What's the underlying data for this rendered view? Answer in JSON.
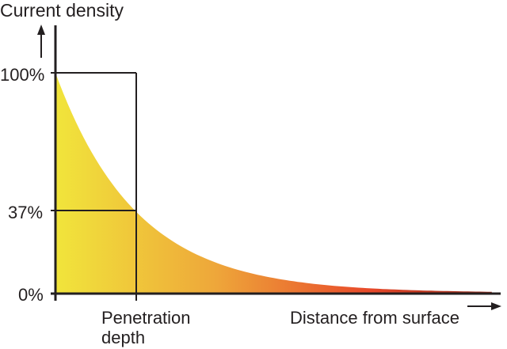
{
  "chart_data": {
    "type": "area",
    "ylabel": "Current density",
    "xlabel": "Distance from surface",
    "y_ticks": [
      "100%",
      "37%",
      "0%"
    ],
    "x_marker_label": [
      "Penetration",
      "depth"
    ],
    "curve": "exponential decay",
    "points": [
      {
        "x": 0,
        "y": 100
      },
      {
        "x": 1,
        "y": 37
      },
      {
        "x": 2,
        "y": 13.5
      },
      {
        "x": 3,
        "y": 5
      },
      {
        "x": 4,
        "y": 1.8
      },
      {
        "x": 5,
        "y": 0.7
      }
    ],
    "ylim": [
      0,
      100
    ],
    "grid": false,
    "colors": {
      "start": "#f1e53b",
      "mid": "#eea73a",
      "end": "#e8492a",
      "axis": "#231f20"
    }
  }
}
